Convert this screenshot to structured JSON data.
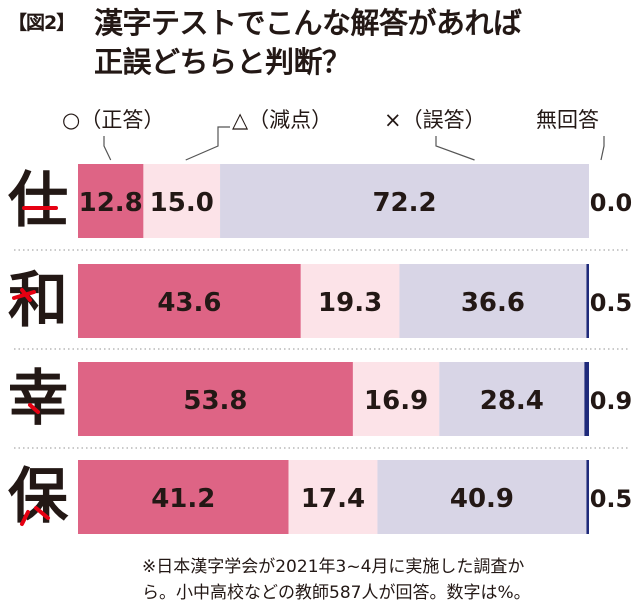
{
  "figure_tag": "【図2】",
  "title_lines": [
    "漢字テストでこんな解答があれば",
    "正誤どちらと判断？"
  ],
  "note_lines": [
    "※日本漢字学会が2021年3~4月に実施した調査か",
    "ら。小中高校などの教師587人が回答。数字は%。"
  ],
  "colors": {
    "correct": "#de6485",
    "reduced": "#fce3e8",
    "wrong": "#d8d5e6",
    "no_answer": "#1f2a7a",
    "divider": "#aaaaaa",
    "leader": "#555555",
    "accent_stroke": "#e60012"
  },
  "chart_data": {
    "type": "bar",
    "stacked": true,
    "orientation": "horizontal",
    "categories": [
      "仕",
      "和",
      "幸",
      "保"
    ],
    "series": [
      {
        "name": "○（正答）",
        "values": [
          12.8,
          43.6,
          53.8,
          41.2
        ]
      },
      {
        "name": "△（減点）",
        "values": [
          15.0,
          19.3,
          16.9,
          17.4
        ]
      },
      {
        "name": "×（誤答）",
        "values": [
          72.2,
          36.6,
          28.4,
          40.9
        ]
      },
      {
        "name": "無回答",
        "values": [
          0.0,
          0.5,
          0.9,
          0.5
        ]
      }
    ],
    "value_labels": [
      [
        "12.8",
        "15.0",
        "72.2",
        "0.0"
      ],
      [
        "43.6",
        "19.3",
        "36.6",
        "0.5"
      ],
      [
        "53.8",
        "16.9",
        "28.4",
        "0.9"
      ],
      [
        "41.2",
        "17.4",
        "40.9",
        "0.5"
      ]
    ],
    "unit": "%",
    "xlim": [
      0,
      100
    ],
    "legend_position": "top"
  }
}
